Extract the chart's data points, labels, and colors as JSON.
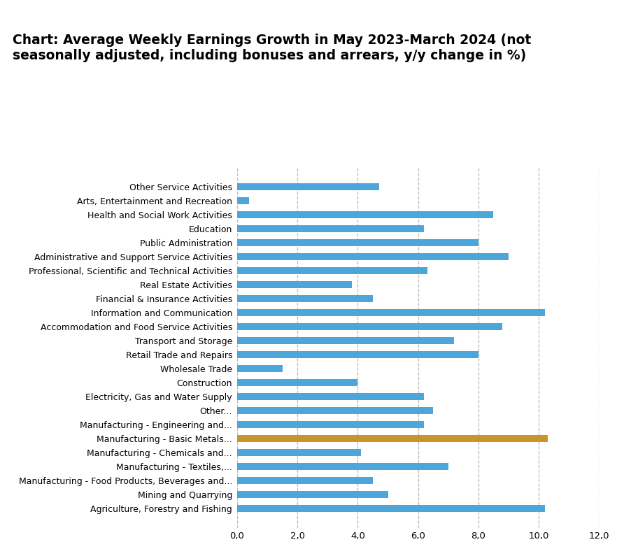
{
  "title": "Chart: Average Weekly Earnings Growth in May 2023-March 2024 (not\nseasonally adjusted, including bonuses and arrears, y/y change in %)",
  "categories": [
    "Agriculture, Forestry and Fishing",
    "Mining and Quarrying",
    "Manufacturing - Food Products, Beverages and...",
    "Manufacturing - Textiles,...",
    "Manufacturing - Chemicals and...",
    "Manufacturing - Basic Metals...",
    "Manufacturing - Engineering and...",
    "Other...",
    "Electricity, Gas and Water Supply",
    "Construction",
    "Wholesale Trade",
    "Retail Trade and Repairs",
    "Transport and Storage",
    "Accommodation and Food Service Activities",
    "Information and Communication",
    "Financial & Insurance Activities",
    "Real Estate Activities",
    "Professional, Scientific and Technical Activities",
    "Administrative and Support Service Activities",
    "Public Administration",
    "Education",
    "Health and Social Work Activities",
    "Arts, Entertainment and Recreation",
    "Other Service Activities"
  ],
  "values": [
    10.2,
    5.0,
    4.5,
    7.0,
    4.1,
    10.3,
    6.2,
    6.5,
    6.2,
    4.0,
    1.5,
    8.0,
    7.2,
    8.8,
    10.2,
    4.5,
    3.8,
    6.3,
    9.0,
    8.0,
    6.2,
    8.5,
    0.4,
    4.7
  ],
  "bar_color_default": "#4da6d9",
  "bar_color_highlight": "#c8952c",
  "highlight_index": 5,
  "xlim": [
    0,
    12
  ],
  "xticks": [
    0,
    2,
    4,
    6,
    8,
    10,
    12
  ],
  "xtick_labels": [
    "0,0",
    "2,0",
    "4,0",
    "6,0",
    "8,0",
    "10,0",
    "12,0"
  ],
  "grid_color": "#bbbbbb",
  "background_color": "#ffffff",
  "title_fontsize": 13.5,
  "label_fontsize": 9.0,
  "tick_fontsize": 9.5
}
